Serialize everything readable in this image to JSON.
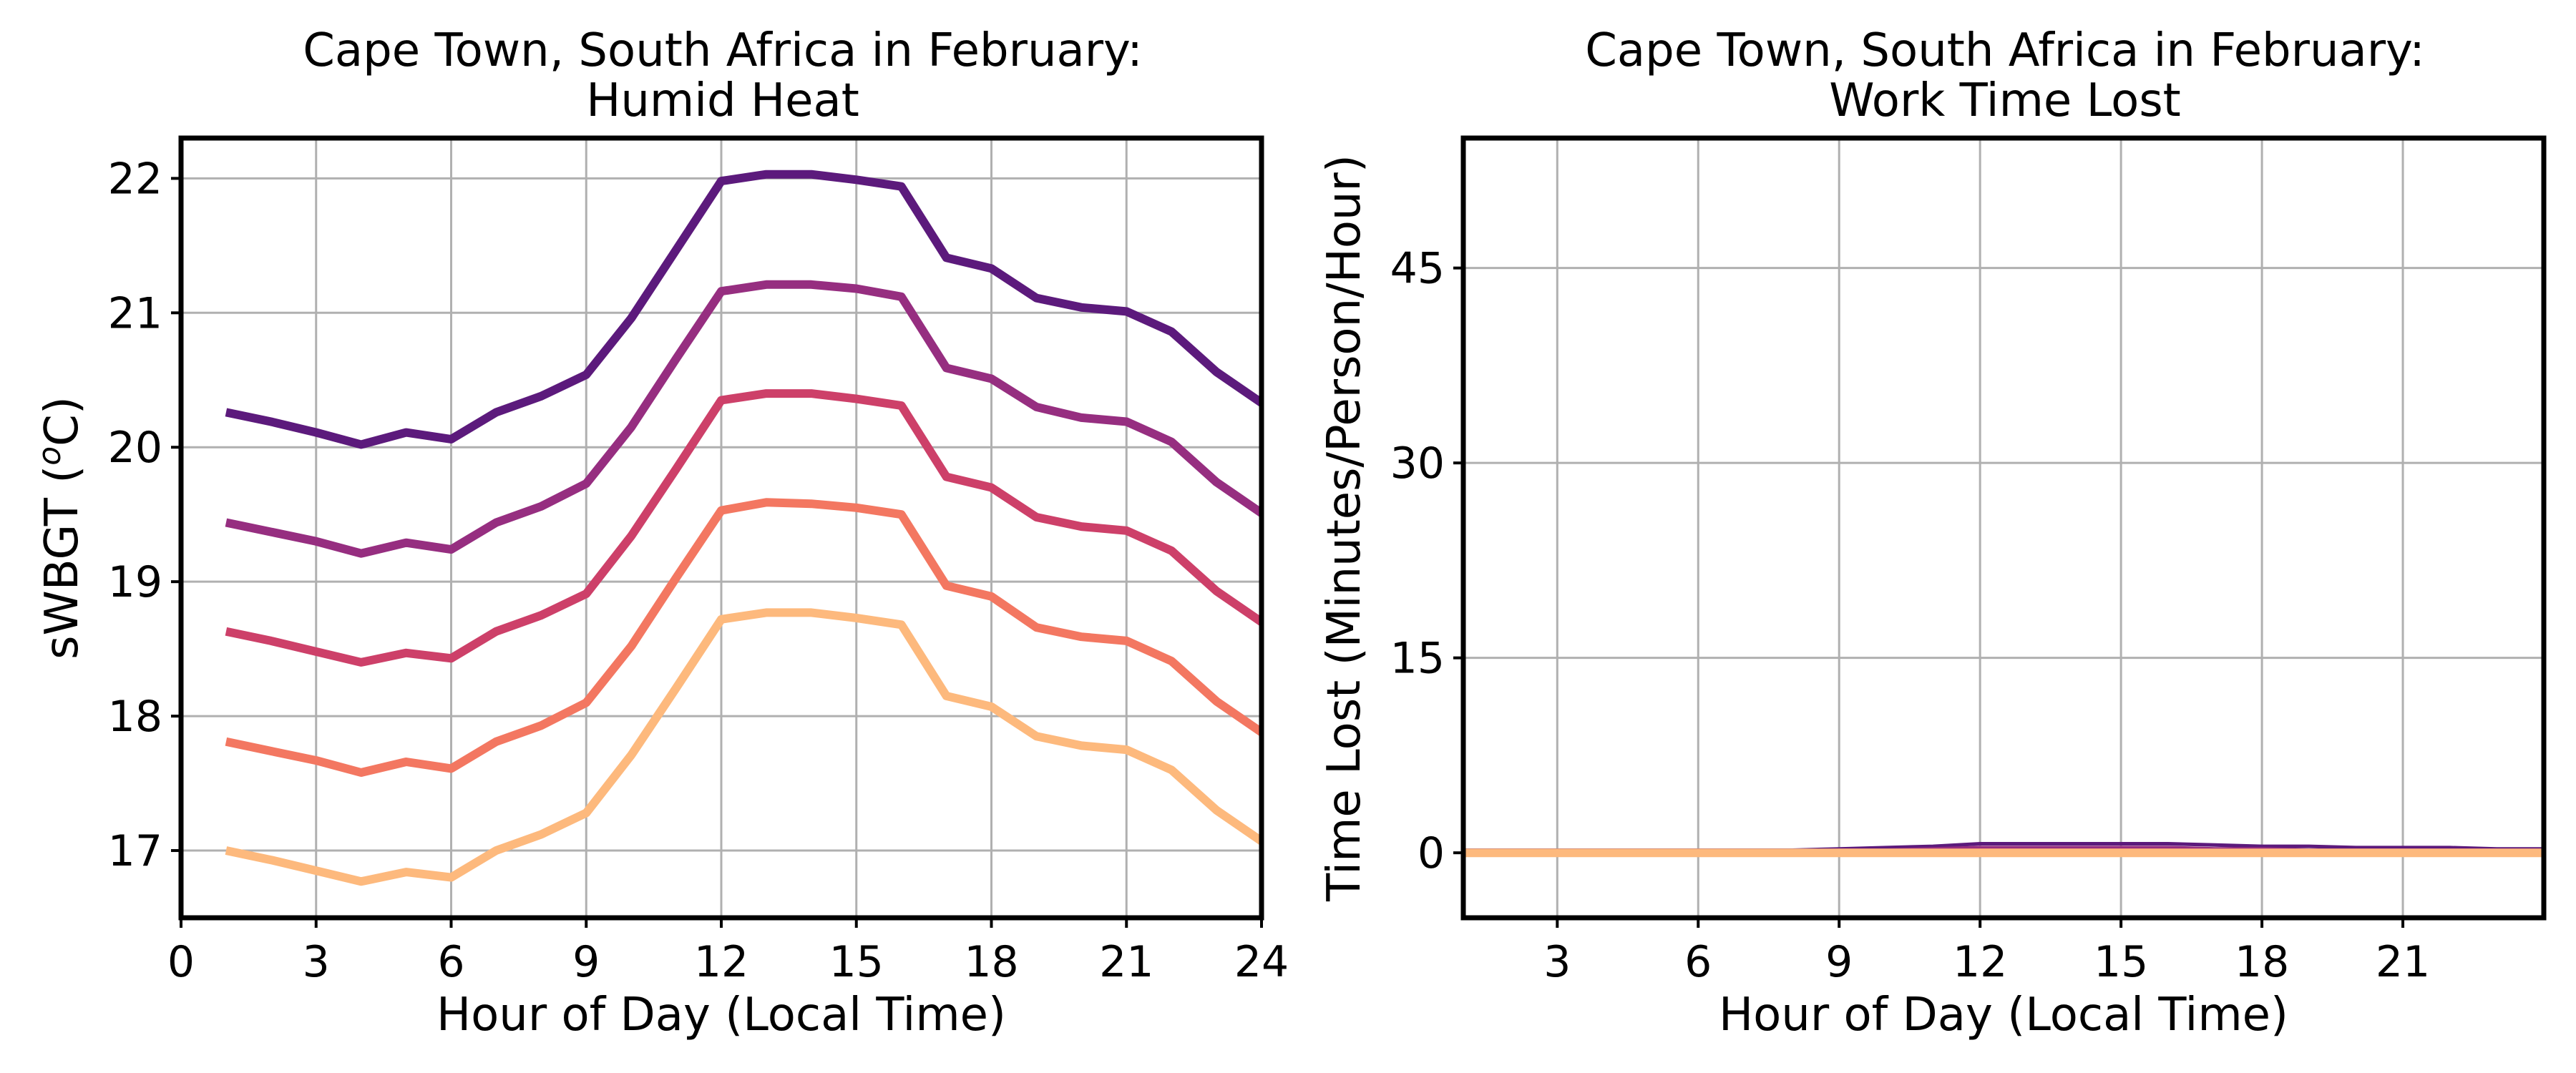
{
  "chart_data": [
    {
      "type": "line",
      "title_line1": "Cape Town, South Africa in February:",
      "title_line2": "Humid Heat",
      "xlabel": "Hour of Day (Local Time)",
      "ylabel_prefix": "sWBGT (",
      "ylabel_sup": "o",
      "ylabel_suffix": "C)",
      "xlim": [
        0,
        24
      ],
      "ylim": [
        16.5,
        22.3
      ],
      "xticks": [
        0,
        3,
        6,
        9,
        12,
        15,
        18,
        21,
        24
      ],
      "yticks": [
        17,
        18,
        19,
        20,
        21,
        22
      ],
      "grid": true,
      "x": [
        1,
        2,
        3,
        4,
        5,
        6,
        7,
        8,
        9,
        10,
        11,
        12,
        13,
        14,
        15,
        16,
        17,
        18,
        19,
        20,
        21,
        22,
        23,
        24
      ],
      "series": [
        {
          "color": "#5c1a7c",
          "values": [
            20.26,
            20.19,
            20.11,
            20.02,
            20.11,
            20.06,
            20.26,
            20.38,
            20.54,
            20.96,
            21.47,
            21.98,
            22.03,
            22.03,
            21.99,
            21.94,
            21.41,
            21.33,
            21.11,
            21.04,
            21.01,
            20.86,
            20.56,
            20.33
          ]
        },
        {
          "color": "#962e80",
          "values": [
            19.44,
            19.37,
            19.3,
            19.21,
            19.29,
            19.24,
            19.44,
            19.56,
            19.73,
            20.15,
            20.66,
            21.16,
            21.21,
            21.21,
            21.18,
            21.12,
            20.59,
            20.51,
            20.3,
            20.22,
            20.19,
            20.04,
            19.74,
            19.51
          ]
        },
        {
          "color": "#cd4069",
          "values": [
            18.63,
            18.56,
            18.48,
            18.4,
            18.47,
            18.43,
            18.63,
            18.75,
            18.91,
            19.34,
            19.84,
            20.35,
            20.4,
            20.4,
            20.36,
            20.31,
            19.78,
            19.7,
            19.48,
            19.41,
            19.38,
            19.23,
            18.93,
            18.7
          ]
        },
        {
          "color": "#f37761",
          "values": [
            17.81,
            17.74,
            17.67,
            17.58,
            17.66,
            17.61,
            17.81,
            17.93,
            18.1,
            18.52,
            19.03,
            19.53,
            19.59,
            19.58,
            19.55,
            19.5,
            18.97,
            18.89,
            18.66,
            18.59,
            18.56,
            18.41,
            18.11,
            17.88
          ]
        },
        {
          "color": "#fdb97d",
          "values": [
            17.0,
            16.93,
            16.85,
            16.77,
            16.84,
            16.8,
            17.0,
            17.12,
            17.28,
            17.71,
            18.21,
            18.72,
            18.77,
            18.77,
            18.73,
            18.68,
            18.15,
            18.07,
            17.85,
            17.78,
            17.75,
            17.6,
            17.3,
            17.07
          ]
        }
      ]
    },
    {
      "type": "line",
      "title_line1": "Cape Town, South Africa in February:",
      "title_line2": "Work Time Lost",
      "xlabel": "Hour of Day (Local Time)",
      "ylabel": "Time Lost (Minutes/Person/Hour)",
      "xlim": [
        1,
        24
      ],
      "ylim": [
        -5,
        55
      ],
      "xticks": [
        3,
        6,
        9,
        12,
        15,
        18,
        21
      ],
      "yticks": [
        0,
        15,
        30,
        45
      ],
      "grid": true,
      "x": [
        1,
        2,
        3,
        4,
        5,
        6,
        7,
        8,
        9,
        10,
        11,
        12,
        13,
        14,
        15,
        16,
        17,
        18,
        19,
        20,
        21,
        22,
        23,
        24
      ],
      "series": [
        {
          "color": "#5c1a7c",
          "values": [
            0.2,
            0.2,
            0.2,
            0.2,
            0.2,
            0.2,
            0.2,
            0.2,
            0.3,
            0.4,
            0.5,
            0.7,
            0.7,
            0.7,
            0.7,
            0.7,
            0.6,
            0.5,
            0.5,
            0.4,
            0.4,
            0.4,
            0.3,
            0.3
          ]
        },
        {
          "color": "#962e80",
          "values": [
            0.1,
            0.1,
            0.1,
            0.1,
            0.1,
            0.1,
            0.1,
            0.1,
            0.2,
            0.2,
            0.3,
            0.4,
            0.4,
            0.4,
            0.4,
            0.4,
            0.3,
            0.3,
            0.2,
            0.2,
            0.2,
            0.2,
            0.2,
            0.2
          ]
        },
        {
          "color": "#cd4069",
          "values": [
            0.05,
            0.05,
            0.05,
            0.05,
            0.05,
            0.05,
            0.05,
            0.05,
            0.1,
            0.1,
            0.15,
            0.2,
            0.2,
            0.2,
            0.2,
            0.2,
            0.15,
            0.1,
            0.1,
            0.1,
            0.1,
            0.1,
            0.1,
            0.1
          ]
        },
        {
          "color": "#f37761",
          "values": [
            0,
            0,
            0,
            0,
            0,
            0,
            0,
            0,
            0.05,
            0.05,
            0.05,
            0.1,
            0.1,
            0.1,
            0.1,
            0.1,
            0.05,
            0.05,
            0.05,
            0.05,
            0.05,
            0.05,
            0.05,
            0
          ]
        },
        {
          "color": "#fdb97d",
          "values": [
            0,
            0,
            0,
            0,
            0,
            0,
            0,
            0,
            0,
            0,
            0,
            0,
            0,
            0,
            0,
            0,
            0,
            0,
            0,
            0,
            0,
            0,
            0,
            0
          ]
        }
      ]
    }
  ]
}
